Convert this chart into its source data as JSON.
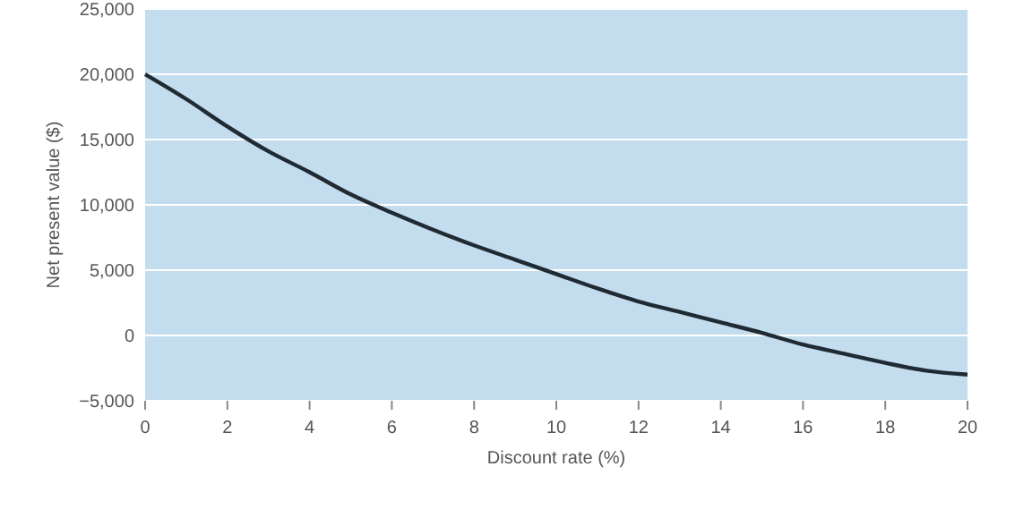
{
  "chart_data": {
    "type": "line",
    "xlabel": "Discount rate (%)",
    "ylabel": "Net present value ($)",
    "x": [
      0,
      1,
      2,
      3,
      4,
      5,
      6,
      7,
      8,
      9,
      10,
      11,
      12,
      13,
      14,
      15,
      16,
      17,
      18,
      19,
      20
    ],
    "series": [
      {
        "color": "#1f2a33",
        "values": [
          20000,
          18100,
          16000,
          14100,
          12500,
          10800,
          9400,
          8100,
          6900,
          5800,
          4700,
          3600,
          2600,
          1800,
          1000,
          200,
          -700,
          -1400,
          -2100,
          -2700,
          -3000
        ]
      }
    ],
    "xlim": [
      0,
      20
    ],
    "xticks": [
      0,
      2,
      4,
      6,
      8,
      10,
      12,
      14,
      16,
      18,
      20
    ],
    "ylim": [
      -5000,
      25000
    ],
    "yticks": [
      {
        "value": -5000,
        "label": "−5,000"
      },
      0,
      {
        "value": 5000,
        "label": "5,000"
      },
      {
        "value": 10000,
        "label": "10,000"
      },
      {
        "value": 15000,
        "label": "15,000"
      },
      {
        "value": 20000,
        "label": "20,000"
      },
      {
        "value": 25000,
        "label": "25,000"
      }
    ],
    "grid": "y",
    "line_style": "solid"
  }
}
